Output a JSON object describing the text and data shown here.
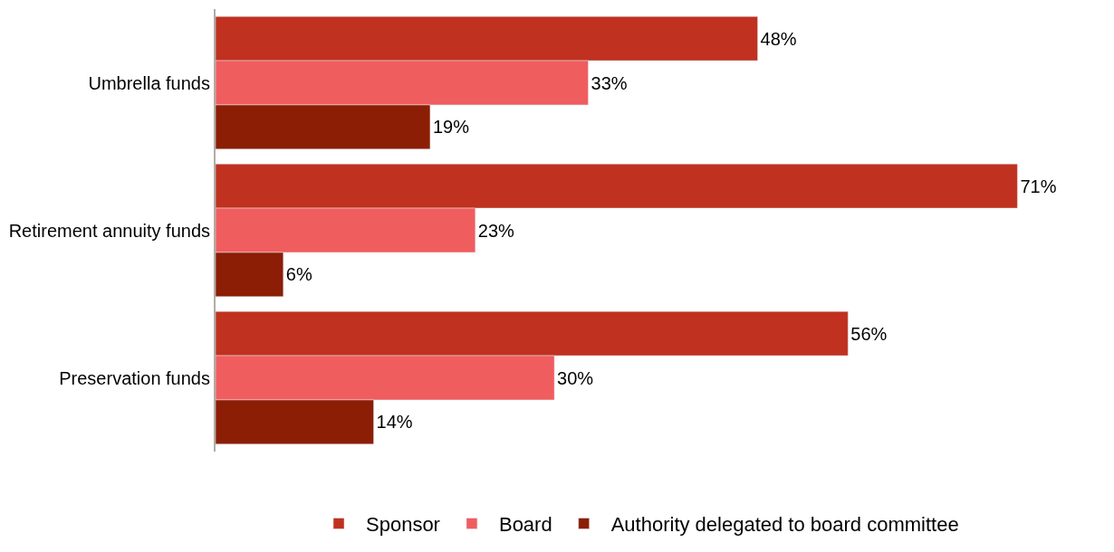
{
  "chart_data": {
    "type": "bar",
    "orientation": "horizontal",
    "categories": [
      "Umbrella funds",
      "Retirement annuity funds",
      "Preservation funds"
    ],
    "series": [
      {
        "name": "Sponsor",
        "color": "#c0311f",
        "values": [
          48,
          71,
          56
        ],
        "value_labels": [
          "48%",
          "71%",
          "56%"
        ]
      },
      {
        "name": "Board",
        "color": "#f05d5e",
        "values": [
          33,
          23,
          30
        ],
        "value_labels": [
          "33%",
          "23%",
          "30%"
        ]
      },
      {
        "name": "Authority delegated to board committee",
        "color": "#8b1e05",
        "values": [
          19,
          6,
          14
        ],
        "value_labels": [
          "19%",
          "6%",
          "14%"
        ]
      }
    ],
    "tick_labels": "y",
    "legend": "bottom"
  }
}
